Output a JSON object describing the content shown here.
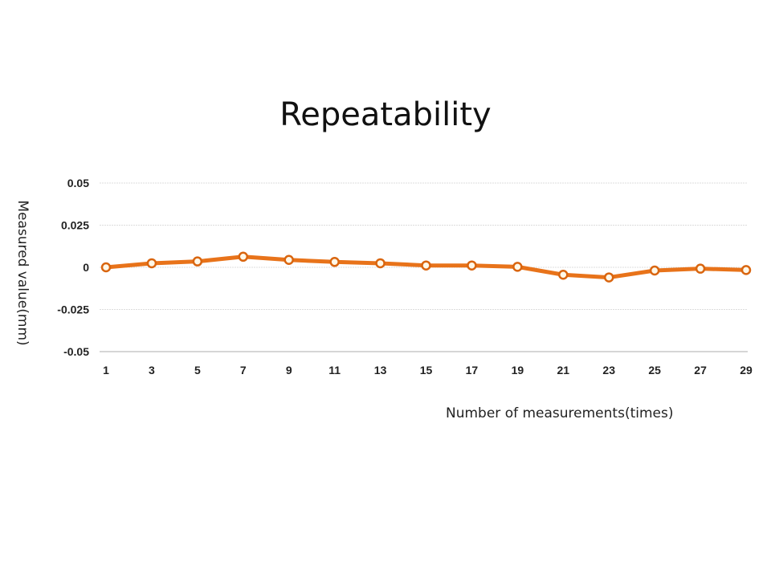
{
  "chart_data": {
    "type": "line",
    "title": "Repeatability",
    "xlabel": "Number of measurements(times)",
    "ylabel": "Measured value(mm)",
    "x": [
      1,
      3,
      5,
      7,
      9,
      11,
      13,
      15,
      17,
      19,
      21,
      23,
      25,
      27,
      29
    ],
    "series": [
      {
        "name": "Measured value",
        "color": "#e8731a",
        "values": [
          0,
          0.0024,
          0.0035,
          0.0063,
          0.0044,
          0.0032,
          0.0024,
          0.0011,
          0.0011,
          0.0003,
          -0.0044,
          -0.006,
          -0.0019,
          -0.0008,
          -0.0016
        ]
      }
    ],
    "ylim": [
      -0.05,
      0.05
    ],
    "yticks": [
      0.05,
      0.025,
      0,
      -0.025,
      -0.05
    ],
    "ytick_labels": [
      "0.05",
      "0.025",
      "0",
      "-0.025",
      "-0.05"
    ],
    "xtick_labels": [
      "1",
      "3",
      "5",
      "7",
      "9",
      "11",
      "13",
      "15",
      "17",
      "19",
      "21",
      "23",
      "25",
      "27",
      "29"
    ],
    "grid": true,
    "legend": "none"
  }
}
